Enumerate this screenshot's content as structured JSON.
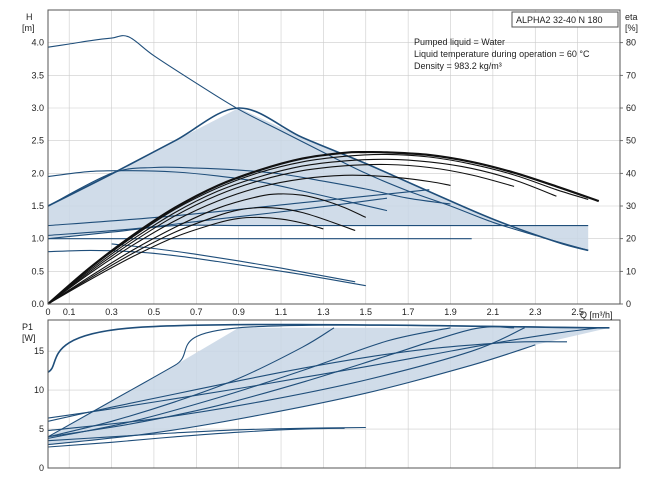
{
  "chart_data": [
    {
      "type": "line",
      "title": "ALPHA2 32-40 N 180",
      "info_lines": [
        "Pumped liquid = Water",
        "Liquid temperature during operation = 60 °C",
        "Density = 983.2 kg/m³"
      ],
      "xlabel": "Q [m³/h]",
      "y_label_lines": [
        "H",
        "[m]"
      ],
      "y2_label_lines": [
        "eta",
        "[%]"
      ],
      "xlim": [
        0,
        2.7
      ],
      "ylim": [
        0,
        4.5
      ],
      "y2lim": [
        0,
        90
      ],
      "x_ticks": [
        "0",
        "0.1",
        "0.3",
        "0.5",
        "0.7",
        "0.9",
        "1.1",
        "1.3",
        "1.5",
        "1.7",
        "1.9",
        "2.1",
        "2.3",
        "2.5"
      ],
      "y_ticks": [
        "0.0",
        "0.5",
        "1.0",
        "1.5",
        "2.0",
        "2.5",
        "3.0",
        "3.5",
        "4.0"
      ],
      "y2_ticks": [
        "0",
        "10",
        "20",
        "30",
        "40",
        "50",
        "60",
        "70",
        "80"
      ],
      "grid": true,
      "region_fill": "#c8d6e5",
      "colors": {
        "head": "#1f4e7a",
        "efficiency": "#111111",
        "grid": "#cccccc"
      },
      "head_curves": [
        {
          "x": [
            0,
            0.1,
            0.2,
            0.3,
            0.38,
            0.5,
            0.7,
            0.9,
            1.1,
            1.3,
            1.5,
            1.7,
            1.9,
            2.1,
            2.3,
            2.55
          ],
          "y": [
            3.93,
            3.98,
            4.03,
            4.07,
            4.09,
            3.8,
            3.38,
            2.98,
            2.65,
            2.32,
            2.0,
            1.73,
            1.5,
            1.25,
            1.05,
            0.82
          ]
        },
        {
          "x": [
            0,
            0.3,
            0.6,
            0.9,
            1.2,
            1.5,
            1.8,
            2.1,
            2.4,
            2.55
          ],
          "y": [
            1.5,
            1.99,
            2.5,
            3.0,
            2.55,
            2.15,
            1.72,
            1.3,
            0.95,
            0.82
          ]
        },
        {
          "x": [
            0,
            0.3,
            0.5,
            0.7,
            0.9,
            1.1,
            1.3,
            1.5,
            1.7,
            1.9
          ],
          "y": [
            1.5,
            2.0,
            2.09,
            2.08,
            2.05,
            1.99,
            1.88,
            1.76,
            1.62,
            1.53
          ]
        },
        {
          "x": [
            0,
            0.2,
            0.4,
            0.6,
            0.8,
            1.0,
            1.2,
            1.4,
            1.6
          ],
          "y": [
            1.95,
            2.03,
            2.04,
            2.02,
            1.96,
            1.87,
            1.73,
            1.58,
            1.43
          ]
        },
        {
          "x": [
            0,
            0.2,
            0.4,
            0.6,
            0.8,
            1.0,
            1.2,
            1.5
          ],
          "y": [
            0.8,
            0.82,
            0.8,
            0.74,
            0.65,
            0.55,
            0.45,
            0.28
          ]
        },
        {
          "x": [
            0.3,
            0.5,
            0.7,
            0.9,
            1.1,
            1.3,
            1.45
          ],
          "y": [
            0.92,
            0.85,
            0.76,
            0.66,
            0.55,
            0.43,
            0.34
          ]
        },
        {
          "x": [
            0,
            0.3,
            0.6,
            0.9,
            1.2,
            1.5,
            1.8,
            2.1,
            2.4,
            2.55
          ],
          "y": [
            1.0,
            1.1,
            1.2,
            1.2,
            1.2,
            1.2,
            1.2,
            1.2,
            1.2,
            1.2
          ]
        },
        {
          "x": [
            0,
            0.5,
            1.0,
            1.5,
            2.0
          ],
          "y": [
            1.0,
            1.0,
            1.0,
            1.0,
            1.0
          ]
        },
        {
          "x": [
            0,
            0.6,
            1.2,
            1.8
          ],
          "y": [
            1.2,
            1.35,
            1.55,
            1.75
          ]
        },
        {
          "x": [
            0,
            0.4,
            0.8,
            1.2,
            1.6
          ],
          "y": [
            1.05,
            1.15,
            1.3,
            1.45,
            1.62
          ]
        }
      ],
      "efficiency_curves": [
        {
          "x": [
            0,
            0.2,
            0.4,
            0.6,
            0.8,
            1.0,
            1.2,
            1.4,
            1.5,
            1.6,
            1.8,
            2.0,
            2.2,
            2.4,
            2.6
          ],
          "y": [
            0,
            11.2,
            21.0,
            29.5,
            36.2,
            41.0,
            44.5,
            46.3,
            46.5,
            46.4,
            45.6,
            43.5,
            40.2,
            36.0,
            31.5
          ]
        },
        {
          "x": [
            0,
            0.2,
            0.4,
            0.6,
            0.8,
            1.0,
            1.2,
            1.4,
            1.6,
            1.8,
            2.0,
            2.2,
            2.4,
            2.55
          ],
          "y": [
            0,
            11.0,
            20.5,
            29.0,
            35.5,
            40.3,
            43.5,
            45.2,
            45.8,
            45.0,
            42.8,
            39.5,
            35.0,
            32.0
          ]
        },
        {
          "x": [
            0,
            0.2,
            0.4,
            0.6,
            0.8,
            1.0,
            1.2,
            1.4,
            1.6,
            1.8,
            2.0,
            2.2,
            2.4
          ],
          "y": [
            0,
            10.5,
            19.8,
            28.0,
            34.5,
            39.0,
            42.2,
            43.8,
            44.3,
            43.5,
            41.5,
            38.0,
            33.0
          ]
        },
        {
          "x": [
            0,
            0.2,
            0.4,
            0.6,
            0.8,
            1.0,
            1.2,
            1.4,
            1.6,
            1.8,
            2.0,
            2.2
          ],
          "y": [
            0,
            10.0,
            19.0,
            27.0,
            33.3,
            37.8,
            40.8,
            42.3,
            42.7,
            41.8,
            39.5,
            36.0
          ]
        },
        {
          "x": [
            0,
            0.2,
            0.4,
            0.6,
            0.8,
            1.0,
            1.2,
            1.4,
            1.6,
            1.8,
            1.9
          ],
          "y": [
            0,
            9.5,
            18.0,
            25.5,
            31.5,
            35.8,
            38.3,
            39.4,
            39.0,
            37.5,
            36.3
          ]
        },
        {
          "x": [
            0,
            0.2,
            0.4,
            0.6,
            0.8,
            1.0,
            1.1,
            1.2,
            1.3,
            1.4,
            1.5
          ],
          "y": [
            0,
            8.5,
            16.5,
            23.5,
            29.3,
            33.0,
            33.7,
            33.3,
            31.8,
            29.5,
            26.5
          ]
        },
        {
          "x": [
            0,
            0.2,
            0.4,
            0.6,
            0.8,
            0.9,
            1.0,
            1.1,
            1.2,
            1.3,
            1.45
          ],
          "y": [
            0,
            8.0,
            15.5,
            22.0,
            27.0,
            28.8,
            29.5,
            29.2,
            28.0,
            26.0,
            22.5
          ]
        },
        {
          "x": [
            0,
            0.2,
            0.4,
            0.6,
            0.8,
            0.9,
            1.0,
            1.1,
            1.2,
            1.3
          ],
          "y": [
            0,
            7.5,
            14.5,
            20.5,
            24.8,
            26.2,
            26.5,
            26.0,
            24.8,
            23.0
          ]
        }
      ]
    },
    {
      "type": "line",
      "y_label_lines": [
        "P1",
        "[W]"
      ],
      "xlim": [
        0,
        2.7
      ],
      "ylim": [
        0,
        19
      ],
      "y_ticks": [
        "0",
        "5",
        "10",
        "15"
      ],
      "grid": true,
      "power_curves": [
        {
          "x": [
            0,
            0.4,
            2.65
          ],
          "y": [
            12.3,
            18.0,
            18.0
          ]
        },
        {
          "x": [
            0,
            0.3,
            0.6,
            0.9,
            2.65
          ],
          "y": [
            4.0,
            8.6,
            13.2,
            18.0,
            18.0
          ]
        },
        {
          "x": [
            0,
            0.3,
            0.6,
            0.9,
            1.2,
            1.5,
            1.8,
            2.1,
            2.25,
            2.45
          ],
          "y": [
            6.0,
            7.8,
            9.5,
            11.2,
            12.8,
            14.2,
            15.3,
            16.0,
            16.2,
            16.2
          ]
        },
        {
          "x": [
            0,
            0.3,
            0.6,
            0.9,
            1.2,
            1.35
          ],
          "y": [
            4.0,
            6.0,
            8.5,
            11.5,
            15.5,
            18.0
          ]
        },
        {
          "x": [
            0,
            0.4,
            0.8,
            1.2,
            1.6,
            1.9
          ],
          "y": [
            3.8,
            6.0,
            9.0,
            12.5,
            16.3,
            18.0
          ]
        },
        {
          "x": [
            0,
            0.4,
            0.8,
            1.2,
            1.6,
            2.0,
            2.2
          ],
          "y": [
            4.0,
            5.7,
            8.0,
            11.0,
            14.4,
            17.8,
            18.0
          ]
        },
        {
          "x": [
            0,
            0.5,
            1.0,
            1.5,
            2.0,
            2.25
          ],
          "y": [
            4.8,
            6.3,
            8.5,
            11.3,
            15.0,
            18.0
          ]
        },
        {
          "x": [
            0,
            0.5,
            1.0,
            1.5,
            2.0,
            2.3
          ],
          "y": [
            3.0,
            4.5,
            6.8,
            9.6,
            13.2,
            15.8
          ]
        },
        {
          "x": [
            0,
            0.3,
            0.6,
            0.9,
            1.2,
            1.5,
            1.8,
            2.1,
            2.4,
            2.6
          ],
          "y": [
            6.4,
            7.6,
            8.9,
            10.2,
            11.6,
            13.0,
            14.5,
            16.0,
            17.3,
            18.0
          ]
        },
        {
          "x": [
            0,
            0.3,
            0.6,
            0.9,
            1.2,
            1.5
          ],
          "y": [
            3.5,
            4.0,
            4.5,
            4.9,
            5.1,
            5.2
          ]
        },
        {
          "x": [
            0,
            0.3,
            0.6,
            0.9,
            1.2,
            1.4
          ],
          "y": [
            2.7,
            3.3,
            4.0,
            4.6,
            5.0,
            5.1
          ]
        }
      ]
    }
  ]
}
